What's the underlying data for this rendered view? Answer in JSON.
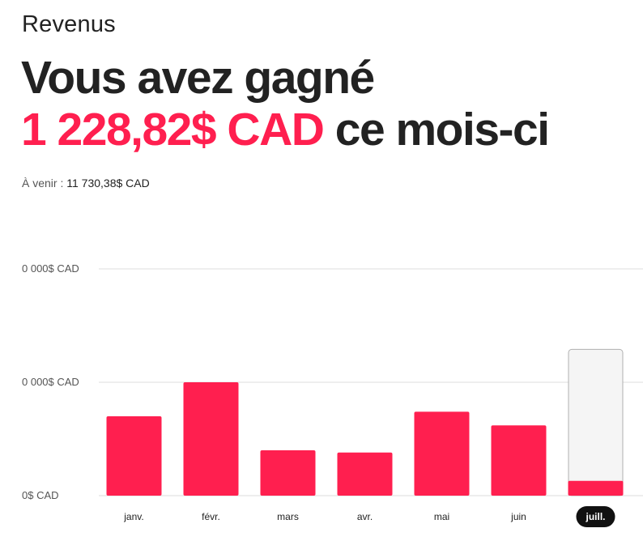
{
  "header": {
    "section_title": "Revenus"
  },
  "summary": {
    "headline_prefix": "Vous avez gagné",
    "amount": "1 228,82$ CAD",
    "headline_suffix": "ce mois-ci",
    "upcoming_label": "À venir :",
    "upcoming_value": "11 730,38$ CAD"
  },
  "colors": {
    "accent": "#ff1f4f",
    "text": "#222222",
    "muted": "#555555",
    "grid": "#dddddd",
    "pending_fill": "#f5f5f5",
    "pending_border": "#b0b0b0",
    "selected_pill": "#111111"
  },
  "chart_data": {
    "type": "bar",
    "title": "",
    "xlabel": "",
    "ylabel": "",
    "y_tick_labels": [
      "0$ CAD",
      "0 000$ CAD",
      "0 000$ CAD"
    ],
    "ylim": [
      0,
      2
    ],
    "grid": true,
    "categories": [
      "janv.",
      "févr.",
      "mars",
      "avr.",
      "mai",
      "juin",
      "juill."
    ],
    "series": [
      {
        "values": [
          0.7,
          1.0,
          0.4,
          0.38,
          0.74,
          0.62,
          0.13
        ]
      }
    ],
    "pending_values": [
      0,
      0,
      0,
      0,
      0,
      0,
      1.29
    ],
    "selected_category": "juill."
  }
}
